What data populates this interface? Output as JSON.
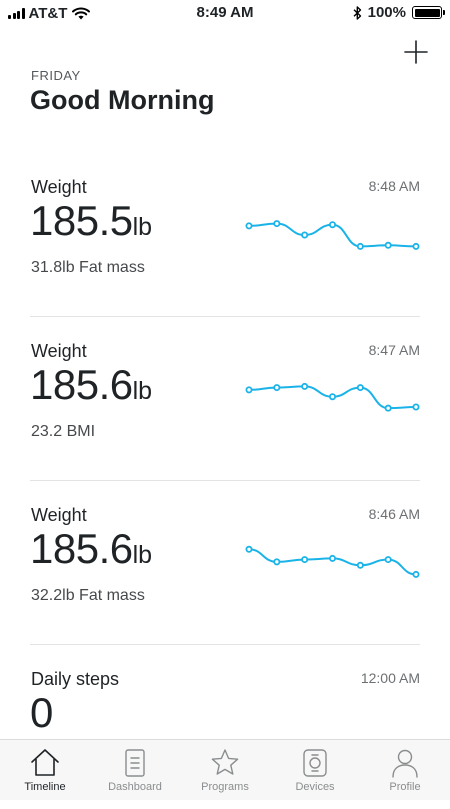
{
  "status_bar": {
    "carrier": "AT&T",
    "time": "8:49 AM",
    "battery": "100%",
    "icons": [
      "signal-icon",
      "wifi-icon",
      "bluetooth-icon",
      "battery-icon"
    ]
  },
  "header": {
    "day": "FRIDAY",
    "greeting": "Good Morning",
    "add_icon": "plus-icon"
  },
  "cards": [
    {
      "title": "Weight",
      "time": "8:48 AM",
      "value": "185.5",
      "unit": "lb",
      "sub": "31.8lb Fat mass",
      "trend": [
        185.7,
        185.8,
        185.3,
        185.75,
        184.8,
        184.85,
        184.8
      ]
    },
    {
      "title": "Weight",
      "time": "8:47 AM",
      "value": "185.6",
      "unit": "lb",
      "sub": "23.2 BMI",
      "trend": [
        185.7,
        185.8,
        185.85,
        185.4,
        185.8,
        184.9,
        184.95
      ]
    },
    {
      "title": "Weight",
      "time": "8:46 AM",
      "value": "185.6",
      "unit": "lb",
      "sub": "32.2lb Fat mass",
      "trend": [
        185.9,
        185.35,
        185.45,
        185.5,
        185.2,
        185.45,
        184.8
      ]
    },
    {
      "title": "Daily steps",
      "time": "12:00 AM",
      "value": "0",
      "unit": "",
      "sub": ""
    }
  ],
  "tabs": [
    {
      "label": "Timeline",
      "icon": "home-icon",
      "active": true
    },
    {
      "label": "Dashboard",
      "icon": "dashboard-icon",
      "active": false
    },
    {
      "label": "Programs",
      "icon": "star-icon",
      "active": false
    },
    {
      "label": "Devices",
      "icon": "watch-icon",
      "active": false
    },
    {
      "label": "Profile",
      "icon": "profile-icon",
      "active": false
    }
  ],
  "colors": {
    "accent": "#1ab3e8",
    "text": "#1f2326",
    "muted": "#6c7073"
  }
}
